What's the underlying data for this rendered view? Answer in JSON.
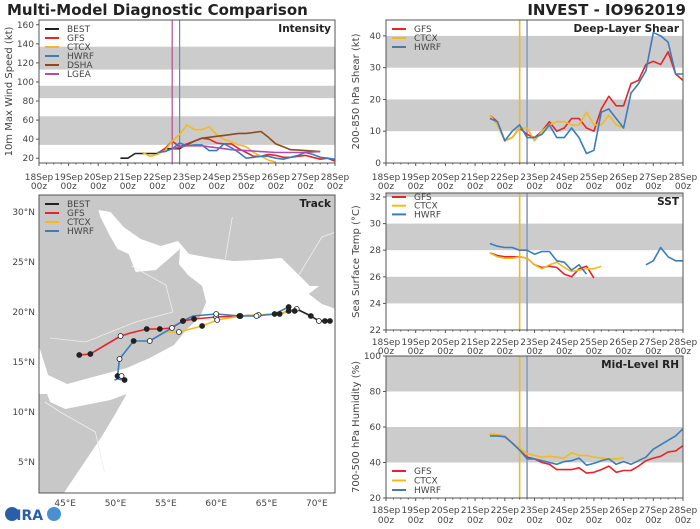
{
  "header": {
    "left_title": "Multi-Model Diagnostic Comparison",
    "right_title": "INVEST - IO962019"
  },
  "logo": {
    "text": "CIRA"
  },
  "colors": {
    "BEST": "#222222",
    "GFS": "#e8242a",
    "CTCX": "#f2bb1d",
    "HWRF": "#3a7dbd",
    "DSHA": "#8b4a22",
    "LGEA": "#a650b4",
    "shade": "#cccccc",
    "land": "#c8c8c8"
  },
  "chart_data": [
    {
      "id": "intensity",
      "type": "line",
      "title": "Intensity",
      "ylabel": "10m Max Wind Speed (kt)",
      "xlim": [
        "18Sep 00z",
        "28Sep 00z"
      ],
      "ylim": [
        15,
        165
      ],
      "xticks": [
        [
          "18Sep",
          "00z"
        ],
        [
          "19Sep",
          "00z"
        ],
        [
          "20Sep",
          "00z"
        ],
        [
          "21Sep",
          "00z"
        ],
        [
          "22Sep",
          "00z"
        ],
        [
          "23Sep",
          "00z"
        ],
        [
          "24Sep",
          "00z"
        ],
        [
          "25Sep",
          "00z"
        ],
        [
          "26Sep",
          "00z"
        ],
        [
          "27Sep",
          "00z"
        ],
        [
          "28Sep",
          "00z"
        ]
      ],
      "yticks": [
        20,
        40,
        60,
        80,
        100,
        120,
        140,
        160
      ],
      "shaded_bands": [
        [
          34,
          64
        ],
        [
          83,
          96
        ],
        [
          113,
          137
        ]
      ],
      "vlines": [
        {
          "time": "22Sep 12z",
          "color": "#b0508f"
        },
        {
          "time": "22Sep 18z",
          "color": "#6f84b8"
        }
      ],
      "legend": "top-left",
      "series": [
        {
          "name": "BEST",
          "start": "20Sep 18z",
          "step_hours": 6,
          "values": [
            20,
            20,
            25,
            25,
            25,
            25,
            30,
            30,
            30,
            35
          ]
        },
        {
          "name": "GFS",
          "start": "22Sep 00z",
          "step_hours": 6,
          "values": [
            25,
            30,
            38,
            32,
            35,
            38,
            41,
            40,
            36,
            35,
            35,
            30,
            26,
            22,
            22,
            24,
            23,
            21,
            21,
            22,
            23,
            21,
            19,
            20,
            17
          ]
        },
        {
          "name": "CTCX",
          "start": "21Sep 12z",
          "step_hours": 6,
          "values": [
            26,
            22,
            24,
            28,
            38,
            45,
            55,
            50,
            50,
            53,
            45,
            40,
            37,
            34,
            32,
            26,
            22,
            18,
            16
          ]
        },
        {
          "name": "HWRF",
          "start": "22Sep 00z",
          "step_hours": 6,
          "values": [
            26,
            27,
            30,
            36,
            33,
            34,
            34,
            28,
            28,
            35,
            31,
            26,
            20,
            21,
            22,
            22,
            20,
            19,
            21,
            23,
            26,
            24,
            21,
            20,
            19
          ]
        },
        {
          "name": "DSHA",
          "start": "22Sep 12z",
          "step_hours": 6,
          "values": [
            30,
            31,
            34,
            38,
            41,
            42,
            43,
            44,
            45,
            46,
            46,
            47,
            48,
            42,
            35,
            32,
            29,
            28.5,
            28,
            27.5,
            27
          ]
        },
        {
          "name": "LGEA",
          "start": "22Sep 12z",
          "step_hours": 6,
          "values": [
            30,
            32,
            33,
            33,
            33,
            32,
            31,
            30,
            29,
            28.5,
            28,
            27.5,
            27,
            26.5,
            26,
            26,
            26,
            26,
            26,
            26.5,
            27
          ]
        }
      ]
    },
    {
      "id": "shear",
      "type": "line",
      "title": "Deep-Layer Shear",
      "ylabel": "200-850 hPa Shear (kt)",
      "xlim": [
        "18Sep 00z",
        "28Sep 00z"
      ],
      "ylim": [
        0,
        45
      ],
      "xticks": [
        [
          "18Sep",
          "00z"
        ],
        [
          "19Sep",
          "00z"
        ],
        [
          "20Sep",
          "00z"
        ],
        [
          "21Sep",
          "00z"
        ],
        [
          "22Sep",
          "00z"
        ],
        [
          "23Sep",
          "00z"
        ],
        [
          "24Sep",
          "00z"
        ],
        [
          "25Sep",
          "00z"
        ],
        [
          "26Sep",
          "00z"
        ],
        [
          "27Sep",
          "00z"
        ],
        [
          "28Sep",
          "00z"
        ]
      ],
      "yticks": [
        0,
        10,
        20,
        30,
        40
      ],
      "shaded_bands": [
        [
          10,
          20
        ],
        [
          30,
          40
        ]
      ],
      "vlines": [
        {
          "time": "22Sep 12z",
          "color": "#f2bb1d"
        },
        {
          "time": "22Sep 18z",
          "color": "#8a9cc4"
        }
      ],
      "legend": "top-left",
      "series": [
        {
          "name": "GFS",
          "start": "21Sep 12z",
          "step_hours": 6,
          "values": [
            15,
            13,
            7,
            8,
            11,
            9,
            8,
            10,
            13,
            10,
            11,
            14,
            14,
            11,
            10,
            17,
            21,
            18,
            18,
            25,
            26,
            31,
            32,
            31,
            35,
            28,
            26
          ]
        },
        {
          "name": "CTCX",
          "start": "21Sep 12z",
          "step_hours": 6,
          "values": [
            15,
            12,
            7,
            8,
            11,
            11,
            7,
            10,
            12,
            13,
            13,
            12,
            12,
            16,
            12,
            12,
            15,
            12,
            11
          ]
        },
        {
          "name": "HWRF",
          "start": "21Sep 12z",
          "step_hours": 6,
          "values": [
            14,
            13,
            7,
            10,
            12,
            8,
            8,
            9,
            12,
            8,
            8,
            11,
            8,
            3,
            4,
            16,
            17,
            14,
            11,
            22,
            25,
            29,
            41,
            40,
            38,
            28,
            28
          ]
        }
      ]
    },
    {
      "id": "sst",
      "type": "line",
      "title": "SST",
      "ylabel": "Sea Surface Temp (°C)",
      "xlim": [
        "18Sep 00z",
        "28Sep 00z"
      ],
      "ylim": [
        22,
        32.3
      ],
      "xticks": [
        [
          "18Sep",
          "00z"
        ],
        [
          "19Sep",
          "00z"
        ],
        [
          "20Sep",
          "00z"
        ],
        [
          "21Sep",
          "00z"
        ],
        [
          "22Sep",
          "00z"
        ],
        [
          "23Sep",
          "00z"
        ],
        [
          "24Sep",
          "00z"
        ],
        [
          "25Sep",
          "00z"
        ],
        [
          "26Sep",
          "00z"
        ],
        [
          "27Sep",
          "00z"
        ],
        [
          "28Sep",
          "00z"
        ]
      ],
      "yticks": [
        22,
        24,
        26,
        28,
        30,
        32
      ],
      "shaded_bands": [
        [
          24,
          26
        ],
        [
          28,
          30
        ],
        [
          32,
          32.3
        ]
      ],
      "vlines": [
        {
          "time": "22Sep 12z",
          "color": "#f2bb1d"
        },
        {
          "time": "22Sep 18z",
          "color": "#8a9cc4"
        }
      ],
      "legend": "top-left",
      "series": [
        {
          "name": "GFS",
          "start": "21Sep 12z",
          "step_hours": 6,
          "values": [
            27.8,
            27.6,
            27.5,
            27.5,
            27.5,
            27.4,
            26.9,
            26.7,
            26.8,
            26.7,
            26.2,
            26.0,
            26.6,
            26.8,
            25.9
          ]
        },
        {
          "name": "CTCX",
          "start": "21Sep 12z",
          "step_hours": 6,
          "values": [
            27.8,
            27.5,
            27.4,
            27.4,
            27.5,
            27.4,
            26.9,
            26.6,
            26.9,
            27.1,
            26.7,
            26.4,
            26.5,
            26.6,
            26.6,
            26.8
          ]
        },
        {
          "name": "HWRF",
          "start": "21Sep 12z",
          "step_hours": 6,
          "values": [
            28.5,
            28.3,
            28.2,
            28.2,
            28.0,
            28.0,
            27.7,
            27.9,
            27.9,
            27.2,
            27.1,
            26.5,
            26.9,
            26.2,
            null,
            null,
            null,
            null,
            null,
            null,
            null,
            26.9,
            27.2,
            28.2,
            27.5,
            27.2,
            27.2
          ]
        }
      ]
    },
    {
      "id": "rh",
      "type": "line",
      "title": "Mid-Level RH",
      "ylabel": "700-500 hPa Humidity (%)",
      "xlim": [
        "18Sep 00z",
        "28Sep 00z"
      ],
      "ylim": [
        20,
        100
      ],
      "xticks": [
        [
          "18Sep",
          "00z"
        ],
        [
          "19Sep",
          "00z"
        ],
        [
          "20Sep",
          "00z"
        ],
        [
          "21Sep",
          "00z"
        ],
        [
          "22Sep",
          "00z"
        ],
        [
          "23Sep",
          "00z"
        ],
        [
          "24Sep",
          "00z"
        ],
        [
          "25Sep",
          "00z"
        ],
        [
          "26Sep",
          "00z"
        ],
        [
          "27Sep",
          "00z"
        ],
        [
          "28Sep",
          "00z"
        ]
      ],
      "yticks": [
        20,
        40,
        60,
        80,
        100
      ],
      "shaded_bands": [
        [
          40,
          60
        ],
        [
          80,
          100
        ]
      ],
      "vlines": [
        {
          "time": "22Sep 12z",
          "color": "#f2bb1d"
        },
        {
          "time": "22Sep 18z",
          "color": "#8a9cc4"
        }
      ],
      "legend": "bottom-left",
      "series": [
        {
          "name": "GFS",
          "start": "21Sep 12z",
          "step_hours": 6,
          "values": [
            56,
            55.5,
            55,
            51,
            47,
            43,
            42,
            40,
            39,
            36,
            36,
            36,
            37,
            34,
            34.5,
            36,
            38,
            34.5,
            35.5,
            35.5,
            38,
            41,
            42.5,
            43.5,
            46,
            46.5,
            49.5
          ]
        },
        {
          "name": "CTCX",
          "start": "21Sep 12z",
          "step_hours": 6,
          "values": [
            56,
            55.5,
            55,
            51,
            48,
            45,
            44,
            43,
            43.5,
            43,
            42.5,
            45.5,
            44,
            44,
            43,
            42.5,
            42,
            42,
            42.5
          ]
        },
        {
          "name": "HWRF",
          "start": "21Sep 12z",
          "step_hours": 6,
          "values": [
            55,
            55,
            54.5,
            51,
            47,
            42,
            42,
            41,
            40,
            39,
            40.5,
            41,
            42.5,
            38.5,
            39.5,
            41,
            42,
            39,
            40.5,
            39,
            41,
            43,
            47.5,
            50,
            52.5,
            55,
            59
          ]
        }
      ]
    },
    {
      "id": "track",
      "type": "map",
      "title": "Track",
      "lon_range": [
        42.4,
        71.8
      ],
      "lat_range": [
        1.9,
        31.7
      ],
      "lon_ticks": [
        [
          "45°E",
          45
        ],
        [
          "50°E",
          50
        ],
        [
          "55°E",
          55
        ],
        [
          "60°E",
          60
        ],
        [
          "65°E",
          65
        ],
        [
          "70°E",
          70
        ]
      ],
      "lat_ticks": [
        [
          "5°N",
          5
        ],
        [
          "10°N",
          10
        ],
        [
          "15°N",
          15
        ],
        [
          "20°N",
          20
        ],
        [
          "25°N",
          25
        ],
        [
          "30°N",
          30
        ]
      ],
      "legend": "top-left",
      "series": [
        {
          "name": "BEST",
          "points": [
            [
              71.3,
              19.1,
              "filled"
            ],
            [
              70.8,
              19.1,
              "filled"
            ],
            [
              70.2,
              19.1,
              "open"
            ],
            [
              69.4,
              19.6,
              "filled"
            ],
            [
              68.0,
              20.3,
              "open"
            ]
          ]
        },
        {
          "name": "GFS",
          "points": [
            [
              68.0,
              20.3,
              ""
            ],
            [
              67.2,
              20.1,
              "filled"
            ],
            [
              66.3,
              19.8,
              "filled"
            ],
            [
              64.0,
              19.7,
              ""
            ],
            [
              62.3,
              19.6,
              "filled"
            ],
            [
              60.0,
              19.5,
              "open"
            ],
            [
              57.8,
              19.3,
              "filled"
            ],
            [
              56.7,
              19.1,
              "filled"
            ],
            [
              55.5,
              18.4,
              ""
            ],
            [
              54.4,
              18.3,
              "filled"
            ],
            [
              53.1,
              18.3,
              "filled"
            ],
            [
              51.5,
              17.9,
              ""
            ],
            [
              50.5,
              17.6,
              "open"
            ],
            [
              49.0,
              16.7,
              ""
            ],
            [
              47.5,
              15.8,
              "filled"
            ],
            [
              46.4,
              15.7,
              "filled"
            ]
          ]
        },
        {
          "name": "CTCX",
          "points": [
            [
              67.8,
              20.1,
              "filled"
            ],
            [
              66.0,
              19.8,
              ""
            ],
            [
              64.2,
              19.7,
              "open"
            ],
            [
              62.4,
              19.6,
              "filled"
            ],
            [
              60.1,
              19.2,
              "open"
            ],
            [
              58.6,
              18.6,
              "filled"
            ],
            [
              56.3,
              18.0,
              "open"
            ],
            [
              54.8,
              18.0,
              ""
            ]
          ]
        },
        {
          "name": "HWRF",
          "points": [
            [
              67.2,
              20.5,
              "filled"
            ],
            [
              65.8,
              19.8,
              "filled"
            ],
            [
              64.0,
              19.6,
              "open"
            ],
            [
              62.4,
              19.6,
              "filled"
            ],
            [
              60.0,
              19.8,
              "open"
            ],
            [
              57.7,
              19.6,
              ""
            ],
            [
              56.7,
              19.1,
              "filled"
            ],
            [
              55.6,
              18.4,
              "open"
            ],
            [
              53.4,
              17.1,
              "open"
            ],
            [
              51.8,
              17.1,
              "filled"
            ],
            [
              50.4,
              15.3,
              "open"
            ],
            [
              50.2,
              13.6,
              "filled"
            ],
            [
              50.6,
              13.6,
              "open"
            ],
            [
              50.9,
              13.2,
              "filled"
            ],
            [
              50.2,
              13.3,
              ""
            ],
            [
              49.9,
              13.2,
              ""
            ]
          ]
        }
      ]
    }
  ]
}
